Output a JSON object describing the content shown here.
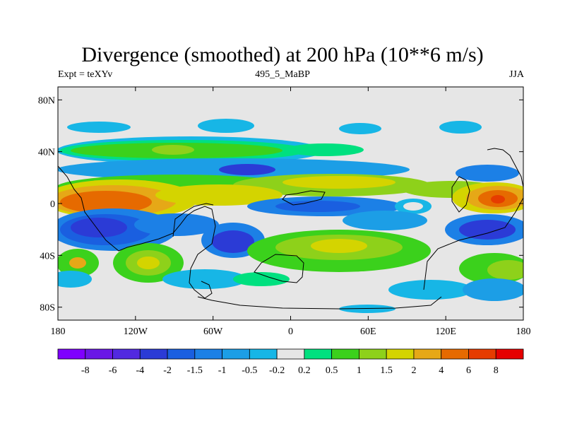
{
  "title": "Divergence (smoothed) at 200 hPa (10**6 m/s)",
  "left_label": "Expt = teXYv",
  "center_label": "495_5_MaBP",
  "right_label": "JJA",
  "map": {
    "lon_ticks": [
      "180",
      "120W",
      "60W",
      "0",
      "60E",
      "120E",
      "180"
    ],
    "lat_ticks": [
      "80N",
      "40N",
      "0",
      "40S",
      "80S"
    ],
    "lon_range": [
      -180,
      180
    ],
    "lat_range": [
      -90,
      90
    ],
    "colors": {
      "background_ocean": "#e6e6e6",
      "coastline": "#000000"
    }
  },
  "colorbar": {
    "colors": [
      "#7f00ff",
      "#6a17e6",
      "#5229e0",
      "#2b3bd6",
      "#1a5fe0",
      "#1c80e6",
      "#1c9ee6",
      "#17b6e6",
      "#e6e6e6",
      "#00e07f",
      "#3bd11c",
      "#8ed11a",
      "#d4d400",
      "#e6a817",
      "#e66a00",
      "#e63c00",
      "#e60000"
    ],
    "labels": [
      "-8",
      "-6",
      "-4",
      "-2",
      "-1.5",
      "-1",
      "-0.5",
      "-0.2",
      "0.2",
      "0.5",
      "1",
      "1.5",
      "2",
      "4",
      "6",
      "8"
    ]
  }
}
